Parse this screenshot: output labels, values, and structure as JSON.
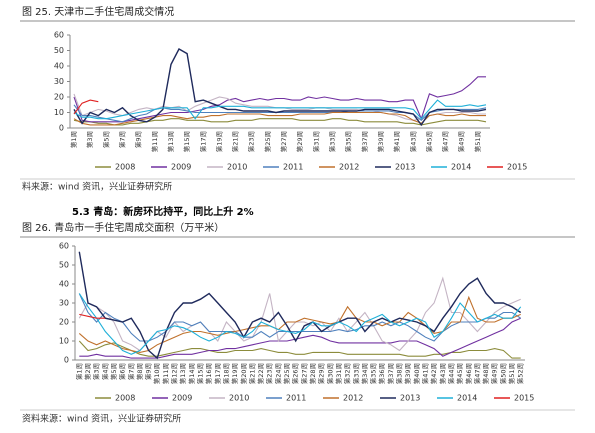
{
  "figures": [
    {
      "caption": "图 25.  天津市二手住宅周成交情况",
      "source": "料来源：wind 资讯，兴业证券研究所"
    },
    {
      "caption": "图 26.  青岛市一手住宅周成交面积（万平米）",
      "source": "资料来源：wind 资讯，兴业证券研究所"
    }
  ],
  "section_heading": "5.3 青岛：新房环比持平，同比上升 2%",
  "chart_data": [
    {
      "type": "line",
      "grid": false,
      "ylim": [
        0,
        60
      ],
      "yticks": [
        0,
        10,
        20,
        30,
        40,
        50,
        60
      ],
      "categories": [
        "第1周",
        null,
        "第3周",
        null,
        "第5周",
        null,
        "第7周",
        null,
        "第9周",
        null,
        "第11周",
        null,
        "第13周",
        null,
        "第15周",
        null,
        "第17周",
        null,
        "第19周",
        null,
        "第21周",
        null,
        "第23周",
        null,
        "第25周",
        null,
        "第27周",
        null,
        "第29周",
        null,
        "第31周",
        null,
        "第33周",
        null,
        "第35周",
        null,
        "第37周",
        null,
        "第39周",
        null,
        "第41周",
        null,
        "第43周",
        null,
        "第45周",
        null,
        "第47周",
        null,
        "第49周",
        null,
        "第51周",
        null
      ],
      "series": [
        {
          "name": "2008",
          "color": "#8c8c3c",
          "values": [
            5,
            4,
            4,
            3,
            3,
            2,
            2,
            3,
            3,
            4,
            5,
            5,
            6,
            6,
            5,
            5,
            5,
            4,
            4,
            4,
            5,
            5,
            5,
            6,
            6,
            6,
            6,
            6,
            5,
            5,
            5,
            5,
            6,
            6,
            5,
            5,
            4,
            4,
            4,
            4,
            4,
            3,
            3,
            2,
            3,
            4,
            5,
            5,
            5,
            5,
            5,
            4
          ]
        },
        {
          "name": "2009",
          "color": "#7030a0",
          "values": [
            20,
            5,
            4,
            4,
            4,
            4,
            4,
            5,
            6,
            7,
            8,
            9,
            10,
            10,
            10,
            11,
            12,
            14,
            15,
            18,
            19,
            17,
            18,
            19,
            18,
            19,
            19,
            18,
            18,
            20,
            19,
            20,
            19,
            18,
            18,
            19,
            18,
            18,
            18,
            17,
            17,
            18,
            18,
            6,
            22,
            20,
            21,
            22,
            24,
            28,
            33,
            33
          ]
        },
        {
          "name": "2010",
          "color": "#c4b4c4",
          "values": [
            22,
            8,
            10,
            12,
            11,
            9,
            8,
            10,
            12,
            13,
            12,
            14,
            13,
            14,
            11,
            14,
            16,
            18,
            20,
            19,
            16,
            15,
            14,
            14,
            14,
            13,
            13,
            12,
            12,
            12,
            13,
            13,
            12,
            12,
            12,
            12,
            11,
            11,
            10,
            9,
            8,
            6,
            5,
            6,
            8,
            9,
            10,
            10,
            10,
            10,
            9,
            9
          ]
        },
        {
          "name": "2011",
          "color": "#4f81bd",
          "values": [
            15,
            8,
            8,
            7,
            6,
            5,
            4,
            6,
            8,
            9,
            12,
            13,
            12,
            12,
            11,
            10,
            10,
            10,
            10,
            10,
            10,
            10,
            10,
            10,
            10,
            10,
            10,
            10,
            10,
            10,
            10,
            10,
            10,
            10,
            11,
            11,
            11,
            11,
            11,
            11,
            10,
            10,
            9,
            5,
            10,
            11,
            12,
            12,
            12,
            12,
            12,
            13
          ]
        },
        {
          "name": "2012",
          "color": "#c0712c",
          "values": [
            6,
            3,
            2,
            2,
            2,
            2,
            3,
            4,
            5,
            6,
            7,
            8,
            8,
            7,
            6,
            7,
            7,
            8,
            8,
            9,
            9,
            9,
            9,
            9,
            8,
            8,
            8,
            8,
            9,
            9,
            9,
            9,
            10,
            10,
            10,
            10,
            10,
            10,
            10,
            9,
            9,
            8,
            5,
            3,
            8,
            9,
            8,
            8,
            9,
            8,
            8,
            8
          ]
        },
        {
          "name": "2013",
          "color": "#1f2a5c",
          "values": [
            12,
            3,
            10,
            8,
            12,
            10,
            13,
            8,
            5,
            4,
            7,
            12,
            41,
            51,
            48,
            17,
            18,
            16,
            14,
            12,
            12,
            11,
            11,
            11,
            11,
            10,
            11,
            11,
            11,
            11,
            11,
            11,
            11,
            11,
            11,
            11,
            12,
            12,
            12,
            12,
            11,
            10,
            9,
            2,
            10,
            12,
            12,
            12,
            11,
            11,
            11,
            12
          ]
        },
        {
          "name": "2014",
          "color": "#1fb0d8",
          "values": [
            10,
            7,
            7,
            6,
            6,
            7,
            8,
            9,
            10,
            11,
            12,
            13,
            13,
            13,
            13,
            6,
            13,
            13,
            14,
            14,
            14,
            14,
            13,
            13,
            13,
            13,
            13,
            13,
            13,
            13,
            13,
            13,
            13,
            13,
            13,
            13,
            13,
            13,
            13,
            13,
            13,
            13,
            12,
            6,
            12,
            18,
            14,
            14,
            14,
            15,
            14,
            15
          ]
        },
        {
          "name": "2015",
          "color": "#e02020",
          "values": [
            9,
            16,
            18,
            17,
            null,
            null,
            null,
            null,
            null,
            null,
            null,
            null,
            null,
            null,
            null,
            null,
            null,
            null,
            null,
            null,
            null,
            null,
            null,
            null,
            null,
            null,
            null,
            null,
            null,
            null,
            null,
            null,
            null,
            null,
            null,
            null,
            null,
            null,
            null,
            null,
            null,
            null,
            null,
            null,
            null,
            null,
            null,
            null,
            null,
            null,
            null,
            null
          ]
        }
      ]
    },
    {
      "type": "line",
      "grid": false,
      "ylim": [
        0,
        60
      ],
      "yticks": [
        0,
        10,
        20,
        30,
        40,
        50,
        60
      ],
      "categories": [
        "第1周",
        "第2周",
        "第3周",
        "第4周",
        "第5周",
        "第6周",
        "第7周",
        "第8周",
        "第9周",
        "第10周",
        "第11周",
        "第12周",
        "第13周",
        "第14周",
        "第15周",
        "第16周",
        "第17周",
        "第18周",
        "第19周",
        "第20周",
        "第21周",
        "第22周",
        "第23周",
        "第24周",
        "第25周",
        "第26周",
        "第27周",
        "第28周",
        "第29周",
        "第30周",
        "第31周",
        "第32周",
        "第33周",
        "第34周",
        "第35周",
        "第36周",
        "第37周",
        "第38周",
        "第39周",
        "第40周",
        "第41周",
        "第42周",
        "第43周",
        "第44周",
        "第45周",
        "第46周",
        "第47周",
        "第48周",
        "第49周",
        "第50周",
        "第51周",
        "第52周"
      ],
      "series": [
        {
          "name": "2008",
          "color": "#8c8c3c",
          "values": [
            10,
            5,
            6,
            8,
            9,
            7,
            5,
            3,
            2,
            2,
            3,
            4,
            5,
            6,
            6,
            5,
            4,
            4,
            5,
            5,
            5,
            6,
            5,
            4,
            4,
            3,
            3,
            4,
            4,
            4,
            4,
            3,
            3,
            3,
            3,
            3,
            3,
            3,
            2,
            2,
            2,
            3,
            3,
            4,
            4,
            5,
            5,
            5,
            6,
            5,
            1,
            1
          ]
        },
        {
          "name": "2009",
          "color": "#7030a0",
          "values": [
            2,
            2,
            3,
            2,
            2,
            2,
            1,
            1,
            1,
            1,
            2,
            3,
            3,
            3,
            4,
            5,
            5,
            6,
            6,
            7,
            8,
            9,
            10,
            10,
            10,
            11,
            12,
            13,
            12,
            10,
            9,
            9,
            9,
            9,
            9,
            9,
            9,
            10,
            10,
            10,
            8,
            6,
            2,
            4,
            6,
            8,
            10,
            12,
            14,
            16,
            20,
            22
          ]
        },
        {
          "name": "2010",
          "color": "#c4b4c4",
          "values": [
            22,
            30,
            28,
            25,
            20,
            10,
            8,
            5,
            10,
            15,
            12,
            20,
            15,
            18,
            20,
            15,
            10,
            20,
            15,
            10,
            12,
            20,
            35,
            10,
            15,
            20,
            20,
            18,
            20,
            15,
            22,
            15,
            20,
            25,
            18,
            10,
            8,
            5,
            10,
            15,
            25,
            30,
            43,
            25,
            25,
            20,
            15,
            20,
            25,
            28,
            30,
            32
          ]
        },
        {
          "name": "2011",
          "color": "#4f81bd",
          "values": [
            35,
            25,
            20,
            25,
            22,
            20,
            14,
            10,
            10,
            12,
            15,
            20,
            20,
            18,
            20,
            15,
            15,
            15,
            15,
            12,
            12,
            15,
            12,
            15,
            15,
            15,
            15,
            15,
            15,
            15,
            16,
            15,
            16,
            18,
            18,
            20,
            18,
            20,
            18,
            15,
            12,
            10,
            15,
            18,
            20,
            20,
            20,
            22,
            22,
            25,
            25,
            22
          ]
        },
        {
          "name": "2012",
          "color": "#c0712c",
          "values": [
            14,
            10,
            8,
            10,
            8,
            6,
            5,
            4,
            5,
            8,
            10,
            12,
            14,
            15,
            15,
            14,
            13,
            14,
            15,
            16,
            17,
            18,
            18,
            16,
            20,
            20,
            22,
            21,
            20,
            19,
            20,
            28,
            22,
            20,
            20,
            18,
            20,
            20,
            25,
            22,
            18,
            14,
            15,
            20,
            20,
            33,
            22,
            20,
            20,
            22,
            22,
            24
          ]
        },
        {
          "name": "2013",
          "color": "#1f2a5c",
          "values": [
            57,
            30,
            28,
            22,
            21,
            20,
            22,
            15,
            5,
            1,
            15,
            25,
            30,
            30,
            32,
            35,
            30,
            25,
            20,
            12,
            20,
            22,
            20,
            25,
            18,
            10,
            18,
            20,
            15,
            18,
            20,
            22,
            22,
            15,
            20,
            22,
            20,
            22,
            21,
            20,
            18,
            15,
            22,
            28,
            35,
            40,
            43,
            35,
            30,
            30,
            28,
            25
          ]
        },
        {
          "name": "2014",
          "color": "#1fb0d8",
          "values": [
            35,
            28,
            22,
            15,
            10,
            5,
            3,
            5,
            10,
            15,
            16,
            18,
            17,
            15,
            12,
            10,
            12,
            15,
            14,
            12,
            15,
            20,
            18,
            16,
            15,
            14,
            16,
            20,
            18,
            18,
            20,
            18,
            15,
            20,
            22,
            24,
            20,
            18,
            20,
            22,
            20,
            12,
            15,
            22,
            30,
            25,
            20,
            22,
            24,
            22,
            22,
            28
          ]
        },
        {
          "name": "2015",
          "color": "#e02020",
          "values": [
            24,
            23,
            22,
            22,
            null,
            null,
            null,
            null,
            null,
            null,
            null,
            null,
            null,
            null,
            null,
            null,
            null,
            null,
            null,
            null,
            null,
            null,
            null,
            null,
            null,
            null,
            null,
            null,
            null,
            null,
            null,
            null,
            null,
            null,
            null,
            null,
            null,
            null,
            null,
            null,
            null,
            null,
            null,
            null,
            null,
            null,
            null,
            null,
            null,
            null,
            null,
            null
          ]
        }
      ]
    }
  ]
}
